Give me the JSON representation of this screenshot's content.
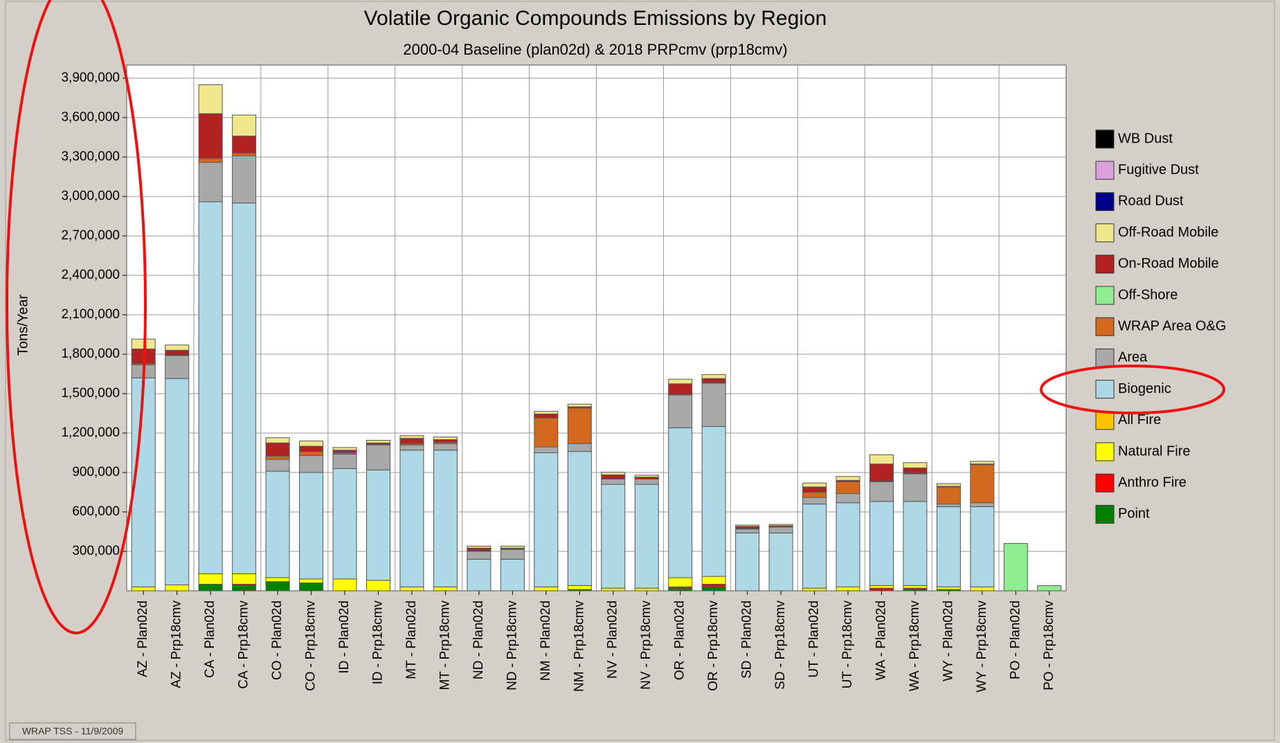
{
  "chart_data": {
    "type": "stacked-bar",
    "title": "Volatile Organic Compounds Emissions by Region",
    "subtitle": "2000-04 Baseline (plan02d) & 2018 PRPcmv (prp18cmv)",
    "y_label": "Tons/Year",
    "footer": "WRAP TSS - 11/9/2009",
    "categories": [
      "AZ - Plan02d",
      "AZ - Prp18cmv",
      "CA - Plan02d",
      "CA - Prp18cmv",
      "CO - Plan02d",
      "CO - Prp18cmv",
      "ID - Plan02d",
      "ID - Prp18cmv",
      "MT - Plan02d",
      "MT - Prp18cmv",
      "ND - Plan02d",
      "ND - Prp18cmv",
      "NM - Plan02d",
      "NM - Prp18cmv",
      "NV - Plan02d",
      "NV - Prp18cmv",
      "OR - Plan02d",
      "OR - Prp18cmv",
      "SD - Plan02d",
      "SD - Prp18cmv",
      "UT - Plan02d",
      "UT - Prp18cmv",
      "WA - Plan02d",
      "WA - Prp18cmv",
      "WY - Plan02d",
      "WY - Prp18cmv",
      "PO - Plan02d",
      "PO - Prp18cmv"
    ],
    "ylim": [
      0,
      4000000
    ],
    "yticks": [
      {
        "value": 300000,
        "label": "300,000"
      },
      {
        "value": 600000,
        "label": "600,000"
      },
      {
        "value": 900000,
        "label": "900,000"
      },
      {
        "value": 1200000,
        "label": "1,200,000"
      },
      {
        "value": 1500000,
        "label": "1,500,000"
      },
      {
        "value": 1800000,
        "label": "1,800,000"
      },
      {
        "value": 2100000,
        "label": "2,100,000"
      },
      {
        "value": 2400000,
        "label": "2,400,000"
      },
      {
        "value": 2700000,
        "label": "2,700,000"
      },
      {
        "value": 3000000,
        "label": "3,000,000"
      },
      {
        "value": 3300000,
        "label": "3,300,000"
      },
      {
        "value": 3600000,
        "label": "3,600,000"
      },
      {
        "value": 3900000,
        "label": "3,900,000"
      }
    ],
    "grid": true,
    "legend": "right",
    "series": [
      {
        "name": "Point",
        "color": "#008000",
        "values": [
          0,
          0,
          50000,
          40000,
          70000,
          60000,
          0,
          0,
          0,
          0,
          0,
          0,
          0,
          10000,
          0,
          0,
          20000,
          30000,
          0,
          0,
          0,
          0,
          0,
          10000,
          10000,
          0,
          0,
          0
        ]
      },
      {
        "name": "Anthro Fire",
        "color": "#ff0000",
        "values": [
          0,
          0,
          0,
          10000,
          0,
          0,
          0,
          0,
          0,
          0,
          0,
          0,
          0,
          0,
          0,
          0,
          10000,
          20000,
          0,
          0,
          0,
          0,
          20000,
          10000,
          0,
          0,
          0,
          0
        ]
      },
      {
        "name": "Natural Fire",
        "color": "#ffff00",
        "values": [
          30000,
          45000,
          80000,
          80000,
          30000,
          30000,
          90000,
          80000,
          30000,
          30000,
          0,
          0,
          30000,
          30000,
          20000,
          20000,
          70000,
          60000,
          0,
          0,
          20000,
          30000,
          20000,
          20000,
          20000,
          30000,
          0,
          0
        ]
      },
      {
        "name": "All Fire",
        "color": "#ffc000",
        "values": [
          0,
          0,
          0,
          0,
          0,
          0,
          0,
          0,
          0,
          0,
          0,
          0,
          0,
          0,
          0,
          0,
          0,
          0,
          0,
          0,
          0,
          0,
          0,
          0,
          0,
          0,
          0,
          0
        ]
      },
      {
        "name": "Biogenic",
        "color": "#add8e6",
        "values": [
          1590000,
          1570000,
          2830000,
          2820000,
          810000,
          810000,
          840000,
          840000,
          1040000,
          1040000,
          240000,
          240000,
          1020000,
          1020000,
          790000,
          790000,
          1140000,
          1140000,
          440000,
          440000,
          640000,
          640000,
          640000,
          640000,
          610000,
          610000,
          0,
          0
        ]
      },
      {
        "name": "Area",
        "color": "#a9a9a9",
        "values": [
          100000,
          175000,
          300000,
          360000,
          90000,
          130000,
          110000,
          190000,
          40000,
          50000,
          60000,
          75000,
          45000,
          60000,
          40000,
          40000,
          250000,
          330000,
          30000,
          45000,
          50000,
          70000,
          150000,
          210000,
          20000,
          30000,
          0,
          0
        ]
      },
      {
        "name": "WRAP Area O&G",
        "color": "#d2691e",
        "values": [
          10000,
          5000,
          30000,
          20000,
          25000,
          30000,
          10000,
          5000,
          10000,
          10000,
          5000,
          5000,
          220000,
          270000,
          2000,
          0,
          5000,
          5000,
          5000,
          0,
          40000,
          90000,
          5000,
          5000,
          130000,
          290000,
          0,
          0
        ]
      },
      {
        "name": "Off-Shore",
        "color": "#90ee90",
        "values": [
          0,
          0,
          0,
          0,
          0,
          0,
          0,
          0,
          0,
          0,
          0,
          0,
          0,
          0,
          0,
          0,
          0,
          0,
          0,
          0,
          0,
          0,
          0,
          0,
          0,
          0,
          360000,
          40000
        ]
      },
      {
        "name": "On-Road Mobile",
        "color": "#b22222",
        "values": [
          110000,
          35000,
          340000,
          130000,
          100000,
          40000,
          20000,
          10000,
          40000,
          20000,
          20000,
          5000,
          30000,
          10000,
          30000,
          15000,
          80000,
          30000,
          15000,
          10000,
          40000,
          10000,
          130000,
          40000,
          5000,
          5000,
          0,
          0
        ]
      },
      {
        "name": "Off-Road Mobile",
        "color": "#f0e68c",
        "values": [
          75000,
          40000,
          220000,
          160000,
          40000,
          40000,
          20000,
          20000,
          20000,
          20000,
          15000,
          15000,
          20000,
          20000,
          20000,
          15000,
          35000,
          30000,
          10000,
          10000,
          30000,
          30000,
          70000,
          40000,
          20000,
          20000,
          0,
          0
        ]
      },
      {
        "name": "Road Dust",
        "color": "#00008b",
        "values": [
          0,
          0,
          0,
          0,
          0,
          0,
          0,
          0,
          0,
          0,
          0,
          0,
          0,
          0,
          0,
          0,
          0,
          0,
          0,
          0,
          0,
          0,
          0,
          0,
          0,
          0,
          0,
          0
        ]
      },
      {
        "name": "Fugitive Dust",
        "color": "#dda0dd",
        "values": [
          0,
          0,
          0,
          0,
          0,
          0,
          0,
          0,
          0,
          0,
          0,
          0,
          0,
          0,
          0,
          0,
          0,
          0,
          0,
          0,
          0,
          0,
          0,
          0,
          0,
          0,
          0,
          0
        ]
      },
      {
        "name": "WB Dust",
        "color": "#000000",
        "values": [
          0,
          0,
          0,
          0,
          0,
          0,
          0,
          0,
          0,
          0,
          0,
          0,
          0,
          0,
          0,
          0,
          0,
          0,
          0,
          0,
          0,
          0,
          0,
          0,
          0,
          0,
          0,
          0
        ]
      }
    ]
  }
}
